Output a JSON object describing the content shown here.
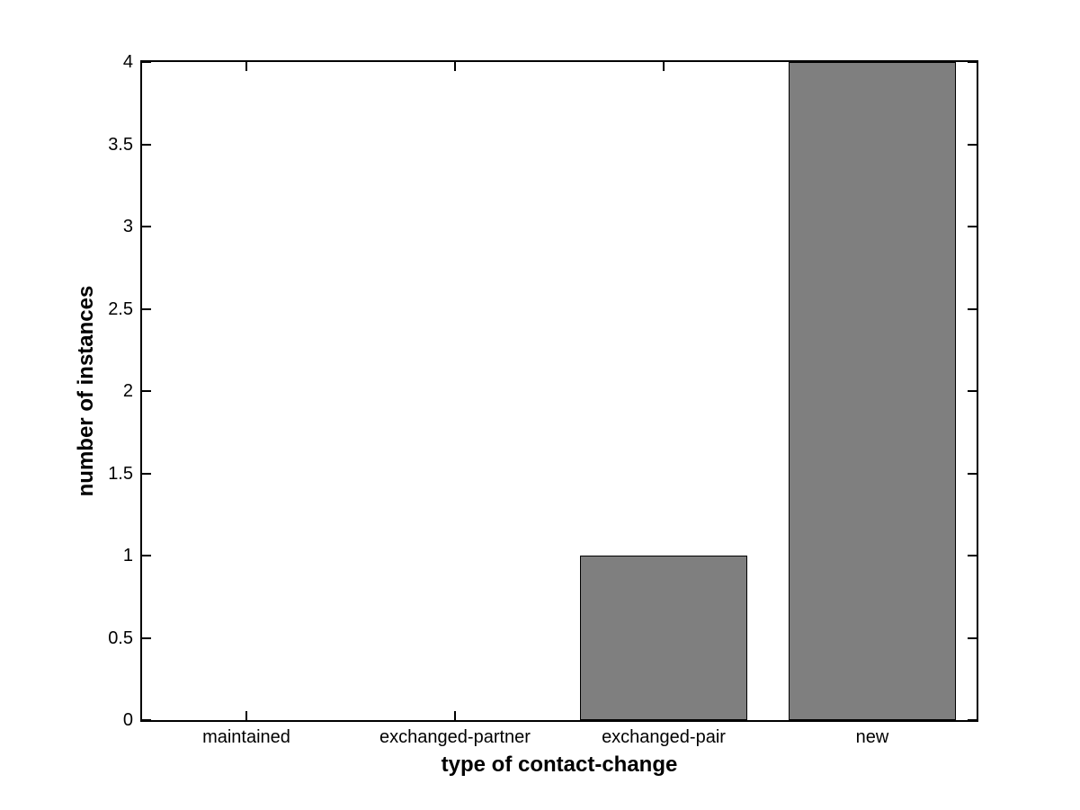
{
  "chart_data": {
    "type": "bar",
    "title": "",
    "categories": [
      "maintained",
      "exchanged-partner",
      "exchanged-pair",
      "new"
    ],
    "values": [
      0,
      0,
      1,
      4
    ],
    "xlabel": "type of contact-change",
    "ylabel": "number of instances",
    "ylim": [
      0,
      4
    ],
    "yticks": [
      0,
      0.5,
      1,
      1.5,
      2,
      2.5,
      3,
      3.5,
      4
    ],
    "ytick_labels": [
      "0",
      "0.5",
      "1",
      "1.5",
      "2",
      "2.5",
      "3",
      "3.5",
      "4"
    ],
    "bar_width_fraction": 0.8,
    "grid": "off",
    "legend": "none",
    "style": {
      "bar_fill_color": "#7f7f7f",
      "bar_edge_color": "#000000",
      "axis_color": "#000000",
      "background_color": "#ffffff",
      "tick_direction": "in",
      "box": "on"
    }
  }
}
